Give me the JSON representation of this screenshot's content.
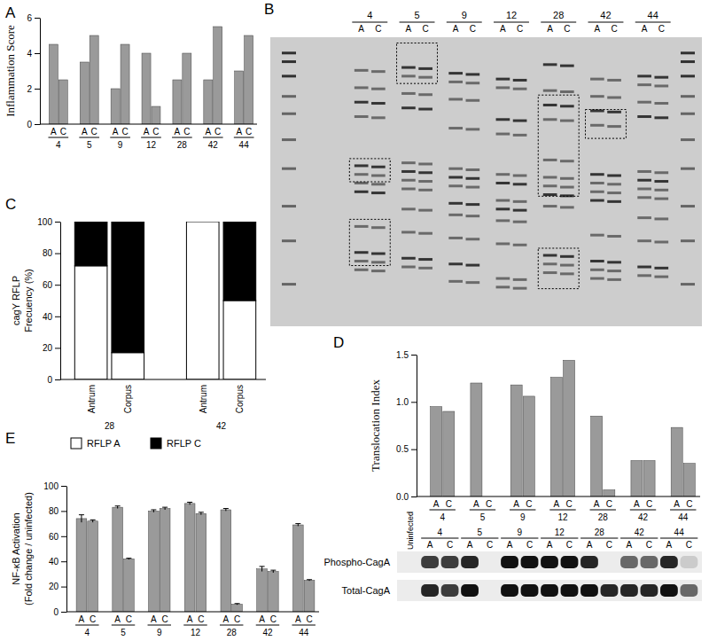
{
  "chart_data": [
    {
      "type": "bar",
      "title": "A",
      "y_label": "Inflammation Score",
      "categories": [
        "A",
        "C",
        "A",
        "C",
        "A",
        "C",
        "A",
        "C",
        "A",
        "C",
        "A",
        "C",
        "A",
        "C"
      ],
      "groups": [
        "4",
        "5",
        "9",
        "12",
        "28",
        "42",
        "44"
      ],
      "values": [
        4.5,
        2.5,
        3.5,
        5,
        2,
        4.5,
        4,
        1,
        2.5,
        4,
        2.5,
        5.5,
        3,
        5
      ],
      "color": "#9a9a9a",
      "ylim": [
        0,
        6
      ],
      "yticks": [
        0,
        2,
        4,
        6
      ]
    },
    {
      "type": "gel",
      "title": "B",
      "categories": [
        "A",
        "C",
        "A",
        "C",
        "A",
        "C",
        "A",
        "C",
        "A",
        "C",
        "A",
        "C",
        "A",
        "C"
      ],
      "groups": [
        "4",
        "5",
        "9",
        "12",
        "28",
        "42",
        "44"
      ]
    },
    {
      "type": "bar",
      "stacked": true,
      "title": "C",
      "y_label": [
        "cagY RFLP",
        "Frecuency (%)"
      ],
      "categories": [
        "Antrum",
        "Corpus",
        "Antrum",
        "Corpus"
      ],
      "groups": [
        "28",
        "42"
      ],
      "series": [
        {
          "name": "RFLP A",
          "color": "#ffffff",
          "values": [
            72,
            17,
            100,
            50
          ]
        },
        {
          "name": "RFLP C",
          "color": "#000000",
          "values": [
            28,
            83,
            0,
            50
          ]
        }
      ],
      "ylim": [
        0,
        100
      ],
      "yticks": [
        0,
        20,
        40,
        60,
        80,
        100
      ],
      "legend": "bottom"
    },
    {
      "type": "bar",
      "title": "D",
      "y_label": "Translocation Index",
      "categories": [
        "A",
        "C",
        "A",
        "C",
        "A",
        "C",
        "A",
        "C",
        "A",
        "C",
        "A",
        "C",
        "A",
        "C"
      ],
      "groups": [
        "4",
        "5",
        "9",
        "12",
        "28",
        "42",
        "44"
      ],
      "values": [
        0.95,
        0.9,
        1.2,
        0,
        1.18,
        1.06,
        1.26,
        1.44,
        0.85,
        0.07,
        0.38,
        0.38,
        0.73,
        0.35
      ],
      "color": "#9a9a9a",
      "ylim": [
        0,
        1.5
      ],
      "yticks": [
        {
          "value": 0,
          "label": "0.0"
        },
        {
          "value": 0.5,
          "label": "0.5"
        },
        {
          "value": 1,
          "label": "1.0"
        },
        {
          "value": 1.5,
          "label": "1.5"
        }
      ],
      "blot": {
        "control": "Uninfected",
        "rows": [
          "Phospho-CagA",
          "Total-CagA"
        ],
        "intensity": [
          [
            0,
            0.8,
            0.8,
            0.9,
            0,
            1,
            1,
            1,
            1,
            0.9,
            0,
            0.6,
            0.6,
            0.9,
            0.15
          ],
          [
            0,
            0.9,
            0.8,
            1,
            0,
            1,
            1,
            1,
            1,
            1,
            0.9,
            0.9,
            0.9,
            1,
            0.6
          ]
        ]
      }
    },
    {
      "type": "bar",
      "title": "E",
      "y_label": [
        "NF-κB Activation",
        "(Fold change / uninfected)"
      ],
      "categories": [
        "A",
        "C",
        "A",
        "C",
        "A",
        "C",
        "A",
        "C",
        "A",
        "C",
        "A",
        "C",
        "A",
        "C"
      ],
      "groups": [
        "4",
        "5",
        "9",
        "12",
        "28",
        "42",
        "44"
      ],
      "values": [
        74,
        72,
        83,
        42,
        80,
        82,
        86,
        78,
        81,
        6,
        34,
        32,
        69,
        25
      ],
      "errors": [
        3,
        1,
        1,
        0.5,
        1,
        1,
        1,
        1,
        1,
        0.5,
        2,
        1,
        1,
        0.5
      ],
      "color": "#9a9a9a",
      "ylim": [
        0,
        100
      ],
      "yticks": [
        0,
        20,
        40,
        60,
        80,
        100
      ]
    }
  ]
}
